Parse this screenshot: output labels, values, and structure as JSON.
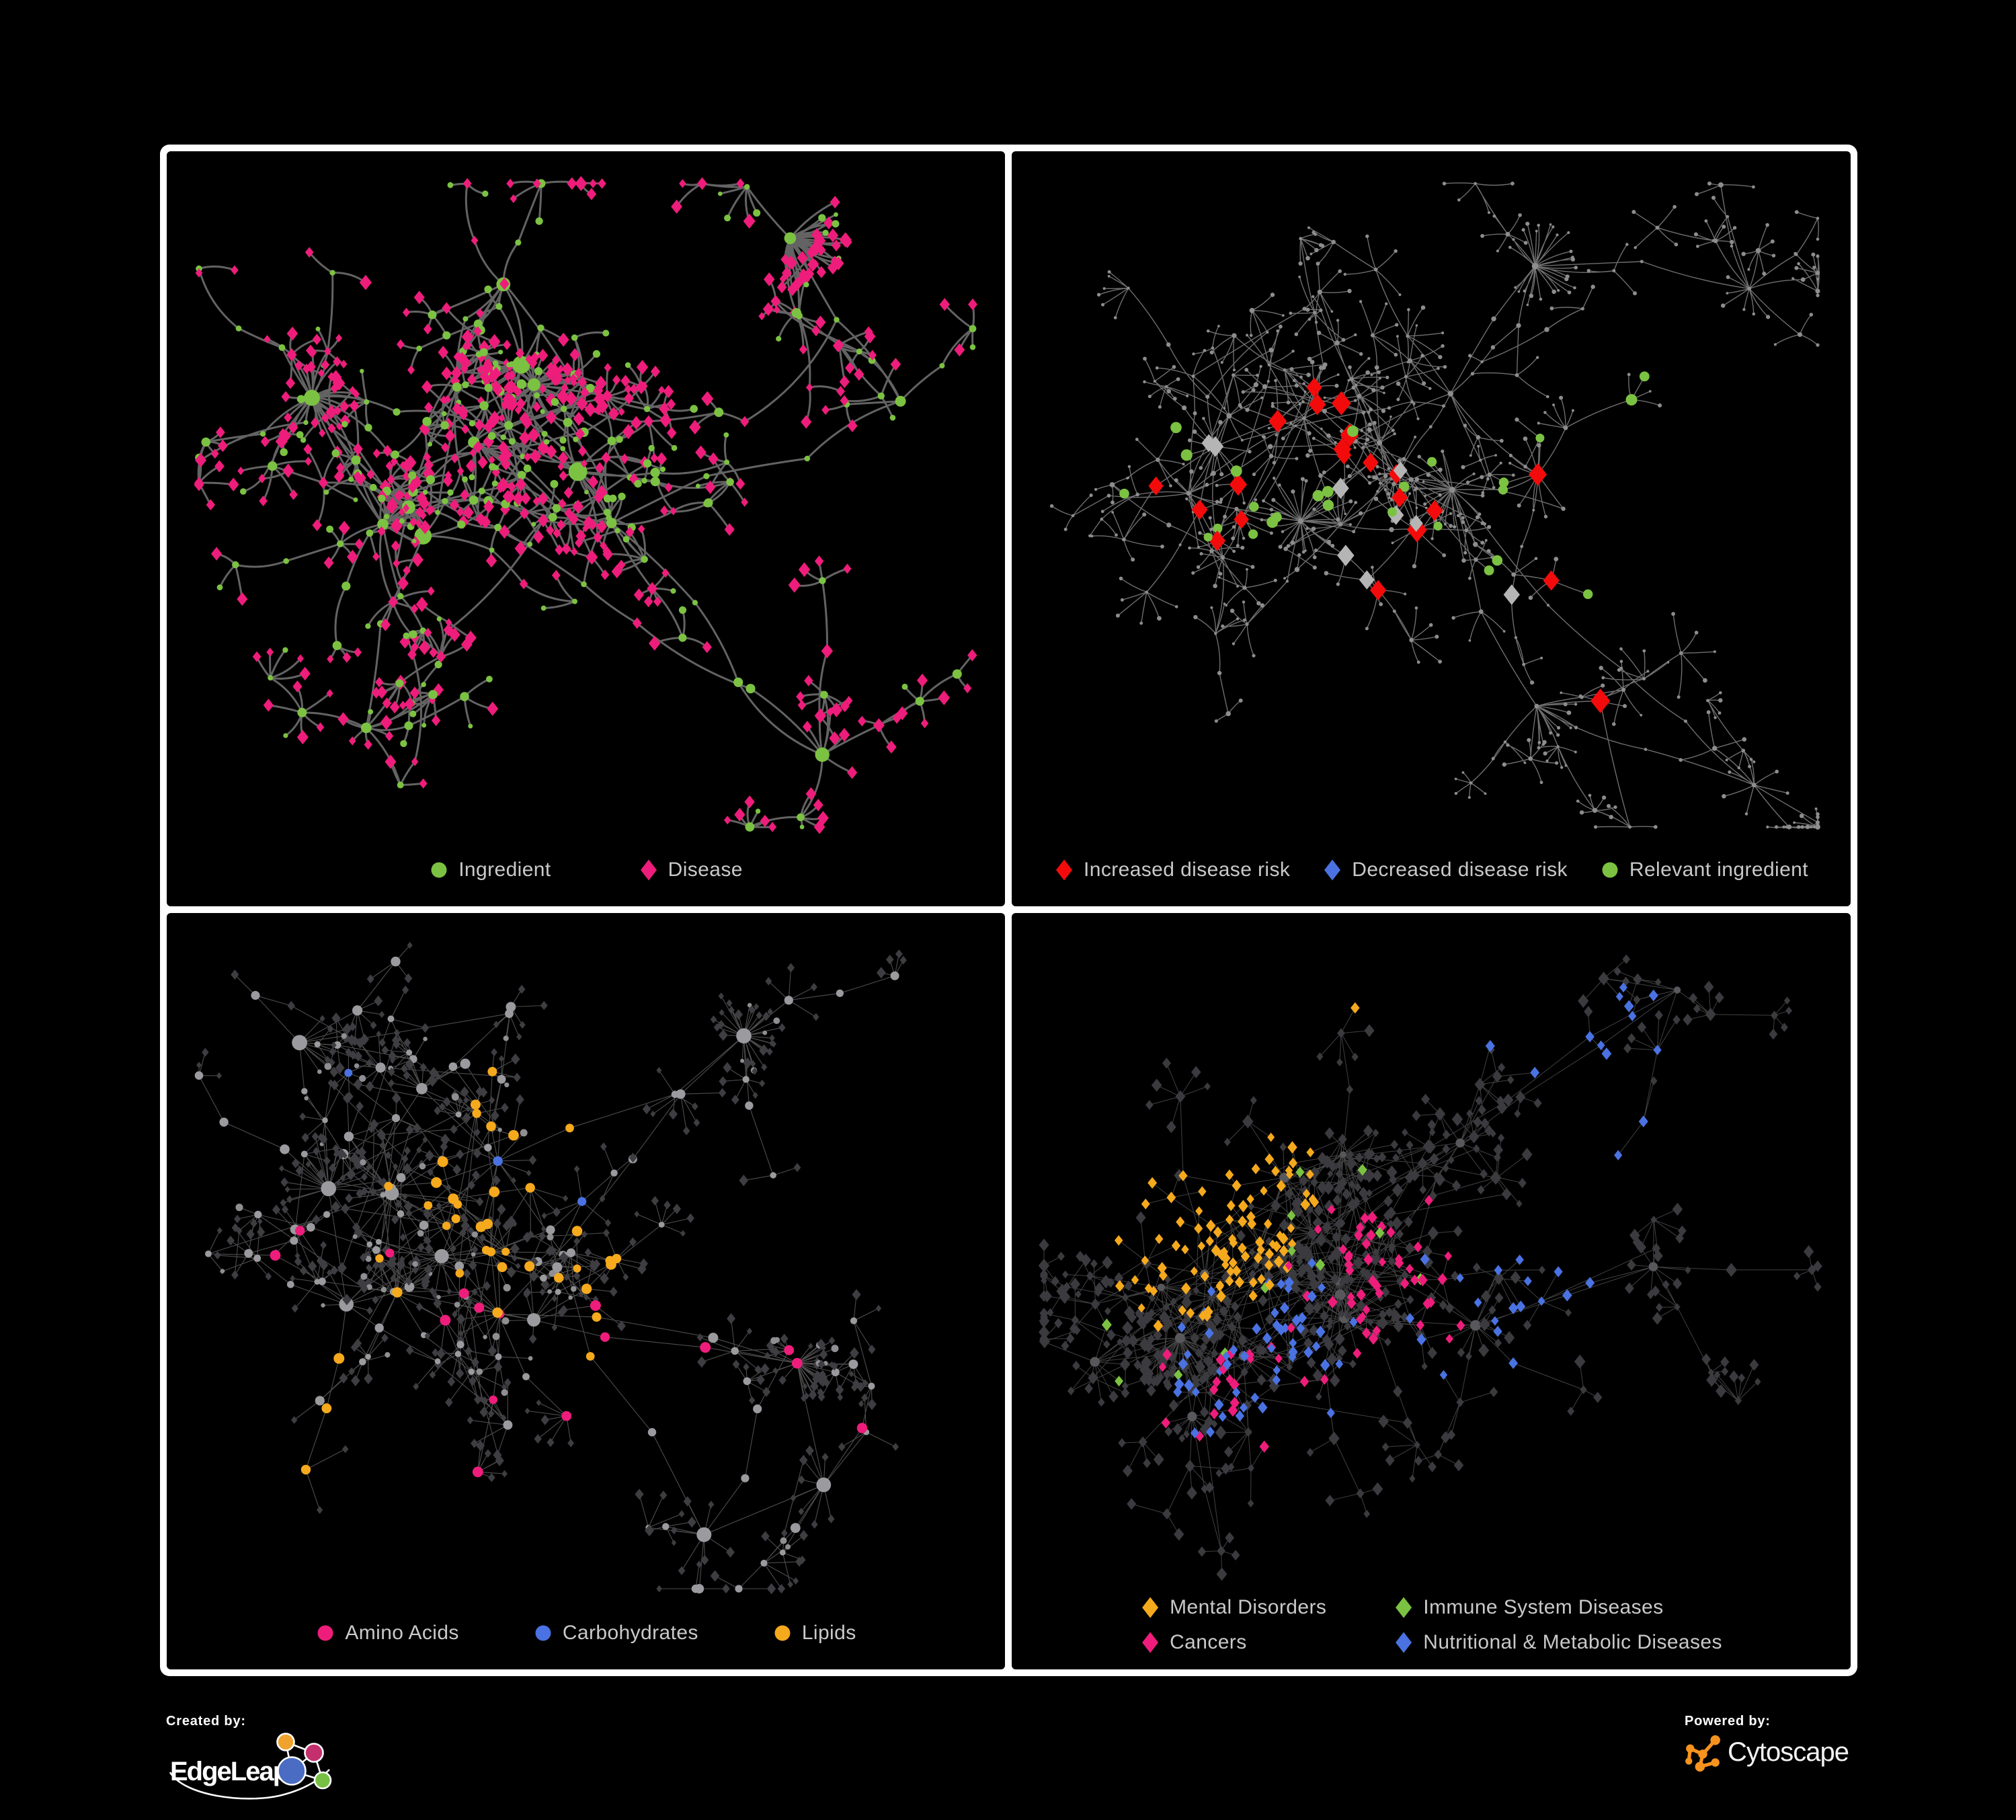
{
  "figure": {
    "background": "#000000",
    "frame_color": "#ffffff"
  },
  "footer": {
    "created_by_label": "Created by:",
    "left_brand": "EdgeLeap",
    "powered_by_label": "Powered by:",
    "right_brand": "Cytoscape",
    "edgeleap_logo_colors": {
      "orange": "#efa32d",
      "magenta": "#c42f6d",
      "blue": "#4a6cc3",
      "green": "#76c043",
      "stroke": "#ffffff"
    },
    "cytoscape_logo_color": "#f6921e"
  },
  "colors": {
    "ingredient_green": "#7cc242",
    "disease_pink": "#ee1d7b",
    "risk_red": "#f30b0b",
    "risk_blue": "#4a72e2",
    "neutral_silver": "#b5b5b5",
    "lipid_orange": "#f5a91d",
    "legend_text": "#c9c9c9"
  },
  "panels": [
    {
      "name": "ingredient-disease-network",
      "legend": {
        "layout": "row",
        "gap": 130,
        "items": [
          {
            "shape": "circle",
            "color": "#7cc242",
            "label": "Ingredient"
          },
          {
            "shape": "diamond",
            "color": "#ee1d7b",
            "label": "Disease"
          }
        ]
      },
      "net": {
        "seed": 20177,
        "clusters": 14,
        "dense": [
          0.3,
          0.35
        ],
        "branch": [
          3,
          7
        ],
        "mega": 3,
        "cross": 0.13,
        "edge": {
          "color": "#686868",
          "width": 3.0,
          "op": 0.95,
          "curve": 0.18
        },
        "roles": {
          "hub": {
            "shape": "circle",
            "color": "#7cc242",
            "size": 10
          },
          "mid": {
            "shape": "circle",
            "color": "#7cc242",
            "size": 5.2,
            "alt": {
              "frac": 0.3,
              "shape": "diamond",
              "color": "#ee1d7b",
              "size": 6.5
            }
          },
          "leaf": {
            "shape": "diamond",
            "color": "#ee1d7b",
            "size": 6.5,
            "alt": {
              "frac": 0.18,
              "shape": "circle",
              "color": "#7cc242",
              "size": 4.4
            }
          }
        },
        "cats": []
      }
    },
    {
      "name": "disease-risk-network",
      "legend": {
        "layout": "row",
        "gap": 48,
        "items": [
          {
            "shape": "diamond",
            "color": "#f30b0b",
            "label": "Increased disease risk"
          },
          {
            "shape": "diamond",
            "color": "#4a72e2",
            "label": "Decreased disease risk"
          },
          {
            "shape": "circle",
            "color": "#7cc242",
            "label": "Relevant ingredient"
          }
        ]
      },
      "net": {
        "seed": 9042,
        "clusters": 16,
        "dense": [
          0.36,
          0.44
        ],
        "branch": [
          3,
          7
        ],
        "mega": 3,
        "cross": 0.1,
        "edge": {
          "color": "#8a8a8a",
          "width": 1.4,
          "op": 0.8,
          "curve": 0.1
        },
        "roles": {
          "hub": {
            "shape": "circle",
            "color": "#8d8d8d",
            "size": 3.6
          },
          "mid": {
            "shape": "circle",
            "color": "#8d8d8d",
            "size": 2.8
          },
          "leaf": {
            "shape": "circle",
            "color": "#8d8d8d",
            "size": 2.4
          }
        },
        "cats": [
          {
            "shape": "diamond",
            "color": "#f30b0b",
            "size": 13,
            "count": 30,
            "roles": [
              "hub",
              "mid"
            ],
            "sig": 0.1,
            "foci": [
              [
                0.24,
                0.47
              ],
              [
                0.42,
                0.5
              ],
              [
                0.36,
                0.4
              ],
              [
                0.55,
                0.5
              ],
              [
                0.68,
                0.64
              ]
            ]
          },
          {
            "shape": "diamond",
            "color": "#4a72e2",
            "size": 12.5,
            "count": 7,
            "roles": [
              "hub",
              "mid"
            ],
            "sig": 0.07,
            "foci": [
              [
                0.24,
                0.47
              ],
              [
                0.27,
                0.52
              ],
              [
                0.8,
                0.3
              ]
            ]
          },
          {
            "shape": "diamond",
            "color": "#b5b5b5",
            "size": 11.5,
            "count": 9,
            "roles": [
              "hub",
              "mid"
            ],
            "sig": 0.09,
            "foci": [
              [
                0.28,
                0.42
              ],
              [
                0.45,
                0.52
              ],
              [
                0.6,
                0.6
              ]
            ]
          },
          {
            "shape": "circle",
            "color": "#7cc242",
            "size": 7.5,
            "count": 26,
            "roles": [
              "hub",
              "mid",
              "leaf"
            ],
            "sig": 0.14,
            "foci": [
              [
                0.3,
                0.45
              ],
              [
                0.45,
                0.48
              ],
              [
                0.6,
                0.55
              ],
              [
                0.14,
                0.42
              ],
              [
                0.77,
                0.31
              ]
            ]
          }
        ]
      }
    },
    {
      "name": "macronutrient-network",
      "legend": {
        "layout": "row",
        "gap": 110,
        "items": [
          {
            "shape": "circle",
            "color": "#ee1d7b",
            "label": "Amino Acids"
          },
          {
            "shape": "circle",
            "color": "#4a72e2",
            "label": "Carbohydrates"
          },
          {
            "shape": "circle",
            "color": "#f5a91d",
            "label": "Lipids"
          }
        ]
      },
      "net": {
        "seed": 51233,
        "clusters": 15,
        "dense": [
          0.32,
          0.38
        ],
        "branch": [
          3,
          7
        ],
        "mega": 4,
        "cross": 0.2,
        "edge": {
          "color": "#9a9a9a",
          "width": 1.1,
          "op": 0.5,
          "curve": 0
        },
        "roles": {
          "hub": {
            "shape": "circle",
            "color": "#9b9b9f",
            "size": 9
          },
          "mid": {
            "shape": "circle",
            "color": "#9b9b9f",
            "size": 5.5
          },
          "leaf": {
            "shape": "diamond",
            "color": "#3d3d42",
            "size": 5,
            "alt": {
              "frac": 0.12,
              "shape": "circle",
              "color": "#8f8f93",
              "size": 4
            }
          }
        },
        "cats": [
          {
            "shape": "circle",
            "color": "#f5a91d",
            "size": 7,
            "count": 62,
            "roles": [
              "hub",
              "mid"
            ],
            "sig": 0.1,
            "foci": [
              [
                0.42,
                0.36
              ],
              [
                0.36,
                0.46
              ],
              [
                0.55,
                0.56
              ],
              [
                0.47,
                0.3
              ],
              [
                0.2,
                0.72
              ]
            ]
          },
          {
            "shape": "circle",
            "color": "#ee1d7b",
            "size": 7,
            "count": 22,
            "roles": [
              "hub",
              "mid"
            ],
            "sig": 0.16,
            "foci": [
              [
                0.35,
                0.66
              ],
              [
                0.7,
                0.62
              ],
              [
                0.48,
                0.72
              ],
              [
                0.06,
                0.5
              ],
              [
                0.8,
                0.38
              ],
              [
                0.3,
                0.9
              ]
            ]
          },
          {
            "shape": "circle",
            "color": "#4a72e2",
            "size": 6.5,
            "count": 13,
            "roles": [
              "hub",
              "mid"
            ],
            "sig": 0.08,
            "foci": [
              [
                0.48,
                0.36
              ],
              [
                0.83,
                0.6
              ],
              [
                0.14,
                0.18
              ],
              [
                0.52,
                0.22
              ]
            ]
          }
        ]
      }
    },
    {
      "name": "disease-category-network",
      "legend": {
        "layout": "grid2",
        "items": [
          {
            "shape": "diamond",
            "color": "#f5a91d",
            "label": "Mental Disorders"
          },
          {
            "shape": "diamond",
            "color": "#7cc242",
            "label": "Immune System Diseases"
          },
          {
            "shape": "diamond",
            "color": "#ee1d7b",
            "label": "Cancers"
          },
          {
            "shape": "diamond",
            "color": "#4a72e2",
            "label": "Nutritional & Metabolic Diseases"
          }
        ]
      },
      "net": {
        "seed": 7781,
        "clusters": 16,
        "dense": [
          0.4,
          0.45
        ],
        "branch": [
          3,
          7
        ],
        "mega": 4,
        "cross": 0.18,
        "edge": {
          "color": "#9a9a9a",
          "width": 1.0,
          "op": 0.42,
          "curve": 0
        },
        "roles": {
          "hub": {
            "shape": "circle",
            "color": "#58585c",
            "size": 6
          },
          "mid": {
            "shape": "diamond",
            "color": "#3a3a3f",
            "size": 6
          },
          "leaf": {
            "shape": "diamond",
            "color": "#3a3a3f",
            "size": 6
          }
        },
        "cats": [
          {
            "shape": "diamond",
            "color": "#f5a91d",
            "size": 6.5,
            "count": 95,
            "roles": [
              "mid",
              "leaf"
            ],
            "sig": 0.1,
            "foci": [
              [
                0.22,
                0.46
              ],
              [
                0.26,
                0.4
              ],
              [
                0.3,
                0.12
              ]
            ]
          },
          {
            "shape": "diamond",
            "color": "#ee1d7b",
            "size": 6.5,
            "count": 70,
            "roles": [
              "mid",
              "leaf"
            ],
            "sig": 0.1,
            "foci": [
              [
                0.44,
                0.5
              ],
              [
                0.48,
                0.56
              ],
              [
                0.87,
                0.27
              ],
              [
                0.28,
                0.7
              ]
            ]
          },
          {
            "shape": "diamond",
            "color": "#4a72e2",
            "size": 6.5,
            "count": 85,
            "roles": [
              "mid",
              "leaf"
            ],
            "sig": 0.11,
            "foci": [
              [
                0.58,
                0.57
              ],
              [
                0.75,
                0.3
              ],
              [
                0.66,
                0.2
              ],
              [
                0.47,
                0.09
              ],
              [
                0.84,
                0.36
              ],
              [
                0.3,
                0.63
              ]
            ]
          },
          {
            "shape": "diamond",
            "color": "#7cc242",
            "size": 6.5,
            "count": 12,
            "roles": [
              "mid",
              "leaf"
            ],
            "sig": 0.18,
            "foci": [
              [
                0.42,
                0.32
              ],
              [
                0.38,
                0.52
              ],
              [
                0.25,
                0.75
              ],
              [
                0.65,
                0.77
              ]
            ]
          }
        ]
      }
    }
  ]
}
